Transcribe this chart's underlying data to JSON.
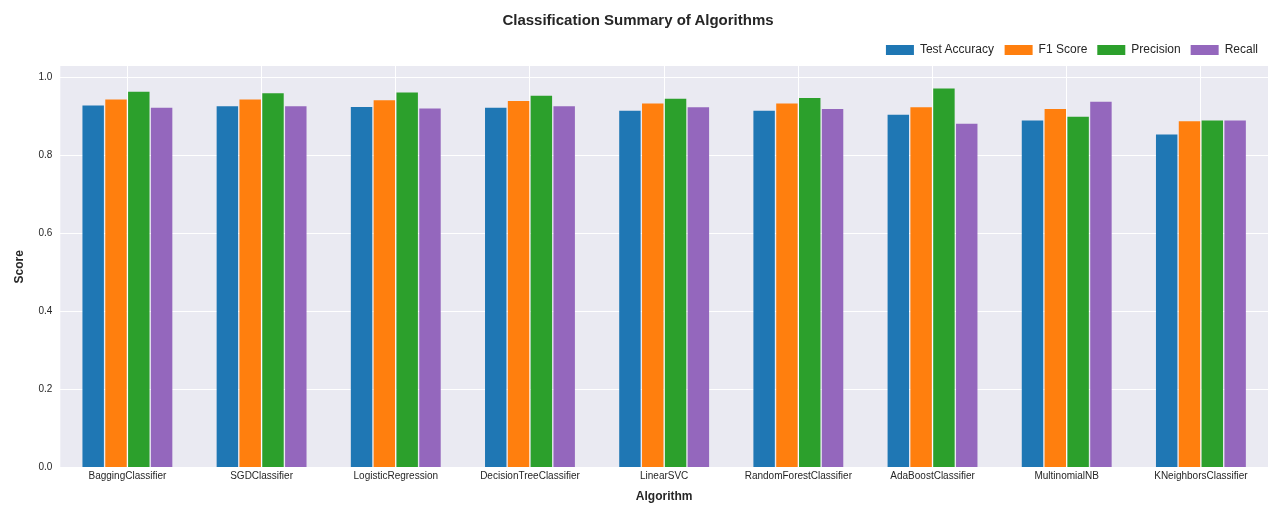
{
  "chart_data": {
    "type": "bar",
    "title": "Classification Summary of Algorithms",
    "xlabel": "Algorithm",
    "ylabel": "Score",
    "categories": [
      "BaggingClassifier",
      "SGDClassifier",
      "LogisticRegression",
      "DecisionTreeClassifier",
      "LinearSVC",
      "RandomForestClassifier",
      "AdaBoostClassifier",
      "MultinomialNB",
      "KNeighborsClassifier"
    ],
    "series": [
      {
        "name": "Test Accuracy",
        "color": "#1f77b4",
        "values": [
          0.929,
          0.927,
          0.925,
          0.923,
          0.915,
          0.915,
          0.905,
          0.89,
          0.854
        ]
      },
      {
        "name": "F1 Score",
        "color": "#ff7f0e",
        "values": [
          0.944,
          0.944,
          0.942,
          0.94,
          0.934,
          0.934,
          0.924,
          0.92,
          0.888
        ]
      },
      {
        "name": "Precision",
        "color": "#2ca02c",
        "values": [
          0.964,
          0.96,
          0.962,
          0.954,
          0.946,
          0.948,
          0.972,
          0.9,
          0.89
        ]
      },
      {
        "name": "Recall",
        "color": "#9467bd",
        "values": [
          0.923,
          0.927,
          0.921,
          0.927,
          0.924,
          0.92,
          0.882,
          0.938,
          0.89
        ]
      }
    ],
    "ylim": [
      0,
      1.03
    ],
    "yticks": [
      {
        "value": 0,
        "label": "0.0"
      },
      {
        "value": 0.2,
        "label": "0.2"
      },
      {
        "value": 0.4,
        "label": "0.4"
      },
      {
        "value": 0.6,
        "label": "0.6"
      },
      {
        "value": 0.8,
        "label": "0.8"
      },
      {
        "value": 1,
        "label": "1.0"
      }
    ],
    "grid": true,
    "legend": "top right"
  }
}
